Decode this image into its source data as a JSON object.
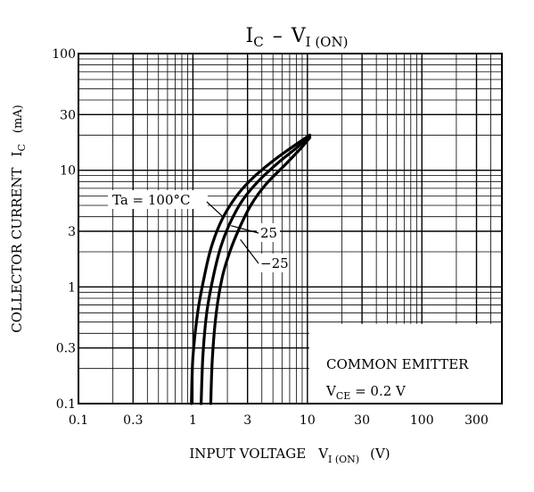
{
  "chart_data": {
    "type": "line",
    "title_main": "I",
    "title_sub1": "C",
    "title_dash": "–",
    "title_main2": "V",
    "title_sub2": "I (ON)",
    "xlabel_main": "INPUT VOLTAGE",
    "xlabel_symbol": "V",
    "xlabel_sub": "I (ON)",
    "xlabel_unit": "(V)",
    "ylabel_main": "COLLECTOR CURRENT",
    "ylabel_symbol": "I",
    "ylabel_sub": "C",
    "ylabel_unit": "(mA)",
    "x_scale": "log",
    "y_scale": "log",
    "xlim": [
      0.1,
      500
    ],
    "ylim": [
      0.1,
      100
    ],
    "x_ticks": [
      {
        "value": 0.1,
        "label": "0.1"
      },
      {
        "value": 0.3,
        "label": "0.3"
      },
      {
        "value": 1,
        "label": "1"
      },
      {
        "value": 3,
        "label": "3"
      },
      {
        "value": 10,
        "label": "10"
      },
      {
        "value": 30,
        "label": "30"
      },
      {
        "value": 100,
        "label": "100"
      },
      {
        "value": 300,
        "label": "300"
      }
    ],
    "y_ticks": [
      {
        "value": 0.1,
        "label": "0.1"
      },
      {
        "value": 0.3,
        "label": "0.3"
      },
      {
        "value": 1,
        "label": "1"
      },
      {
        "value": 3,
        "label": "3"
      },
      {
        "value": 10,
        "label": "10"
      },
      {
        "value": 30,
        "label": "30"
      },
      {
        "value": 100,
        "label": "100"
      }
    ],
    "grid": true,
    "series": [
      {
        "name": "Ta = 100°C",
        "x": [
          0.97,
          1.0,
          1.1,
          1.25,
          1.45,
          1.8,
          2.4,
          3.3,
          5.0,
          7.5,
          10.5
        ],
        "y": [
          0.1,
          0.25,
          0.6,
          1.2,
          2.2,
          3.8,
          6.0,
          8.5,
          12.0,
          16.0,
          20.0
        ]
      },
      {
        "name": "25",
        "x": [
          1.18,
          1.22,
          1.32,
          1.5,
          1.75,
          2.1,
          2.7,
          3.7,
          5.5,
          8.0,
          10.5
        ],
        "y": [
          0.1,
          0.25,
          0.6,
          1.2,
          2.2,
          3.5,
          5.5,
          8.0,
          11.5,
          15.5,
          19.5
        ]
      },
      {
        "name": "−25",
        "x": [
          1.43,
          1.48,
          1.6,
          1.8,
          2.1,
          2.55,
          3.2,
          4.3,
          6.3,
          8.8,
          10.5
        ],
        "y": [
          0.1,
          0.25,
          0.6,
          1.2,
          2.0,
          3.2,
          5.0,
          7.5,
          11.0,
          15.5,
          19.0
        ]
      }
    ],
    "annotation": {
      "line1": "COMMON EMITTER",
      "line2_main": "V",
      "line2_sub": "CE",
      "line2_rest": " = 0.2 V"
    }
  }
}
